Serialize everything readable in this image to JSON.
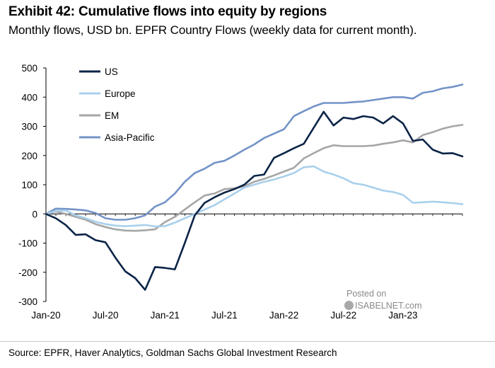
{
  "header": {
    "title": "Exhibit 42: Cumulative flows into equity by regions",
    "subtitle": "Monthly flows, USD bn. EPFR Country Flows (weekly data for current month)."
  },
  "footer": {
    "source": "Source: EPFR, Haver Analytics, Goldman Sachs Global Investment Research"
  },
  "watermark": {
    "posted": "Posted on",
    "brand": "ISABELNET.com"
  },
  "chart_data": {
    "type": "line",
    "title": "",
    "xlabel": "",
    "ylabel": "",
    "ylim": [
      -300,
      500
    ],
    "yticks": [
      -300,
      -200,
      -100,
      0,
      100,
      200,
      300,
      400,
      500
    ],
    "x_tick_labels": [
      "Jan-20",
      "Jul-20",
      "Jan-21",
      "Jul-21",
      "Jan-22",
      "Jul-22",
      "Jan-23"
    ],
    "x_tick_index": [
      0,
      6,
      12,
      18,
      24,
      30,
      36
    ],
    "grid": false,
    "legend": "top-left",
    "x": [
      "Jan-20",
      "Feb-20",
      "Mar-20",
      "Apr-20",
      "May-20",
      "Jun-20",
      "Jul-20",
      "Aug-20",
      "Sep-20",
      "Oct-20",
      "Nov-20",
      "Dec-20",
      "Jan-21",
      "Feb-21",
      "Mar-21",
      "Apr-21",
      "May-21",
      "Jun-21",
      "Jul-21",
      "Aug-21",
      "Sep-21",
      "Oct-21",
      "Nov-21",
      "Dec-21",
      "Jan-22",
      "Feb-22",
      "Mar-22",
      "Apr-22",
      "May-22",
      "Jun-22",
      "Jul-22",
      "Aug-22",
      "Sep-22",
      "Oct-22",
      "Nov-22",
      "Dec-22",
      "Jan-23",
      "Feb-23",
      "Mar-23",
      "Apr-23",
      "May-23",
      "Jun-23",
      "Jul-23"
    ],
    "series": [
      {
        "name": "US",
        "color": "#0b2447",
        "width": 2.6,
        "values": [
          0,
          -15,
          -38,
          -72,
          -70,
          -90,
          -97,
          -150,
          -197,
          -220,
          -260,
          -182,
          -185,
          -190,
          -100,
          -5,
          38,
          57,
          73,
          85,
          100,
          130,
          135,
          192,
          208,
          225,
          240,
          295,
          350,
          303,
          330,
          325,
          335,
          330,
          310,
          335,
          310,
          250,
          255,
          220,
          207,
          208,
          197
        ]
      },
      {
        "name": "Europe",
        "color": "#a9d0ec",
        "width": 2.6,
        "values": [
          0,
          10,
          12,
          -5,
          -15,
          -27,
          -35,
          -40,
          -42,
          -40,
          -38,
          -43,
          -42,
          -30,
          -15,
          0,
          15,
          30,
          50,
          70,
          90,
          100,
          110,
          118,
          128,
          140,
          160,
          163,
          145,
          135,
          122,
          105,
          100,
          90,
          80,
          75,
          65,
          38,
          40,
          42,
          40,
          37,
          33
        ]
      },
      {
        "name": "EM",
        "color": "#a6a6a6",
        "width": 2.6,
        "values": [
          0,
          8,
          0,
          -10,
          -20,
          -35,
          -45,
          -53,
          -57,
          -58,
          -56,
          -53,
          -28,
          -10,
          15,
          40,
          63,
          70,
          85,
          88,
          95,
          110,
          120,
          132,
          145,
          158,
          190,
          208,
          225,
          235,
          232,
          232,
          232,
          234,
          240,
          245,
          252,
          245,
          270,
          280,
          292,
          300,
          305
        ]
      },
      {
        "name": "Asia-Pacific",
        "color": "#7393c7",
        "width": 2.6,
        "values": [
          0,
          18,
          17,
          15,
          12,
          3,
          -15,
          -20,
          -20,
          -15,
          -5,
          25,
          40,
          70,
          110,
          140,
          155,
          175,
          182,
          200,
          220,
          238,
          260,
          275,
          290,
          335,
          352,
          368,
          380,
          380,
          380,
          383,
          385,
          390,
          395,
          400,
          400,
          395,
          415,
          420,
          430,
          435,
          443
        ]
      }
    ]
  }
}
